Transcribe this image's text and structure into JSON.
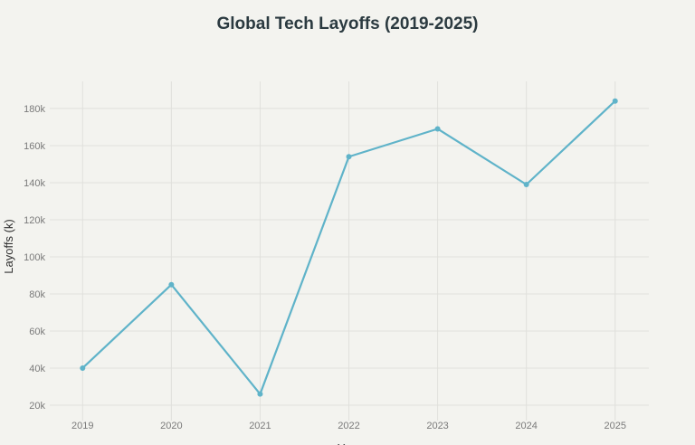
{
  "chart_data": {
    "type": "line",
    "title": "Global Tech Layoffs (2019-2025)",
    "xlabel": "Year",
    "ylabel": "Layoffs (k)",
    "x": [
      2019,
      2020,
      2021,
      2022,
      2023,
      2024,
      2025
    ],
    "series": [
      {
        "values": [
          40,
          85,
          26,
          154,
          169,
          139,
          184
        ]
      }
    ],
    "yticks": [
      20,
      40,
      60,
      80,
      100,
      120,
      140,
      160,
      180
    ],
    "ytick_labels": [
      "20k",
      "40k",
      "60k",
      "80k",
      "100k",
      "120k",
      "140k",
      "160k",
      "180k"
    ],
    "ylim": [
      11.7,
      194.6
    ],
    "xlim": [
      2018.63,
      2025.38
    ],
    "grid": true,
    "line_color": "#5fb3c9",
    "background": "#f3f3ef"
  }
}
